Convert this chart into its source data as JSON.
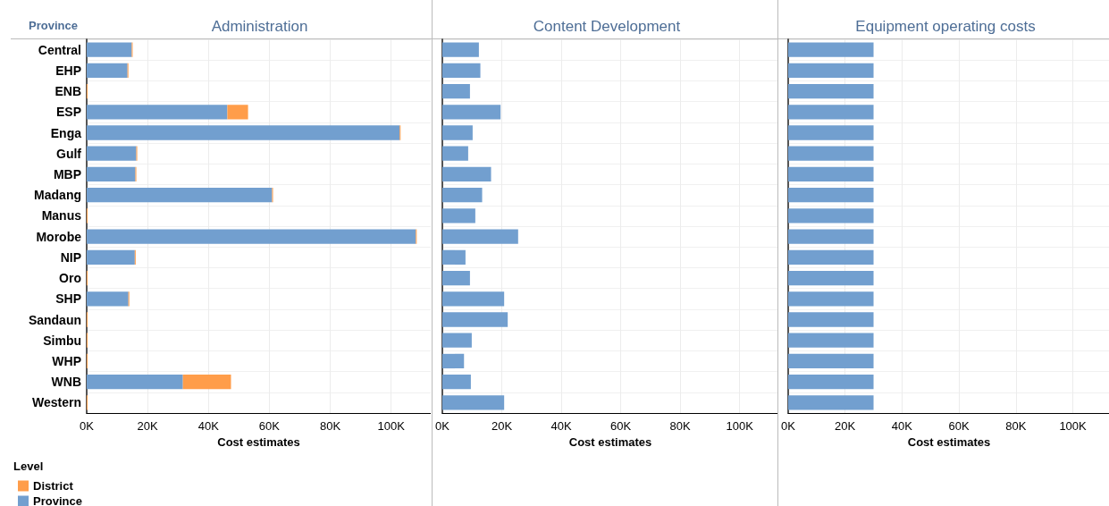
{
  "chart_data": [
    {
      "type": "bar",
      "orientation": "horizontal",
      "stacked": true,
      "title": "Administration",
      "xlabel": "Cost estimates",
      "ylabel": "Province",
      "legend_title": "Level",
      "legend": "bottom left",
      "grid": true,
      "categories": [
        "Central",
        "EHP",
        "ENB",
        "ESP",
        "Enga",
        "Gulf",
        "MBP",
        "Madang",
        "Manus",
        "Morobe",
        "NIP",
        "Oro",
        "SHP",
        "Sandaun",
        "Simbu",
        "WHP",
        "WNB",
        "Western"
      ],
      "xlim": [
        0,
        113000
      ],
      "xticks": [
        {
          "value": 0,
          "label": "0K"
        },
        {
          "value": 20000,
          "label": "20K"
        },
        {
          "value": 40000,
          "label": "40K"
        },
        {
          "value": 60000,
          "label": "60K"
        },
        {
          "value": 80000,
          "label": "80K"
        },
        {
          "value": 100000,
          "label": "100K"
        }
      ],
      "series": [
        {
          "name": "Province",
          "color": "#729fcf",
          "values": [
            14800,
            13400,
            0,
            46200,
            102800,
            16300,
            16000,
            60900,
            0,
            108100,
            15800,
            0,
            13700,
            0,
            0,
            0,
            31600,
            0
          ]
        },
        {
          "name": "District",
          "color": "#ff9d4a",
          "values": [
            300,
            300,
            300,
            6800,
            300,
            300,
            300,
            300,
            300,
            300,
            300,
            300,
            300,
            300,
            300,
            300,
            15800,
            300
          ]
        }
      ]
    },
    {
      "type": "bar",
      "orientation": "horizontal",
      "stacked": true,
      "title": "Content Development",
      "xlabel": "Cost estimates",
      "grid": true,
      "legend": false,
      "tick_labels": "x",
      "xlim": [
        0,
        113000
      ],
      "xticks": [
        {
          "value": 0,
          "label": "0K"
        },
        {
          "value": 20000,
          "label": "20K"
        },
        {
          "value": 40000,
          "label": "40K"
        },
        {
          "value": 60000,
          "label": "60K"
        },
        {
          "value": 80000,
          "label": "80K"
        },
        {
          "value": 100000,
          "label": "100K"
        }
      ],
      "series": [
        {
          "color": "#729fcf",
          "values": [
            12300,
            12800,
            9300,
            19600,
            10200,
            8700,
            16400,
            13400,
            11100,
            25500,
            7800,
            9300,
            20800,
            22000,
            9900,
            7300,
            9600,
            20800
          ]
        }
      ]
    },
    {
      "type": "bar",
      "orientation": "horizontal",
      "stacked": true,
      "title": "Equipment operating costs",
      "xlabel": "Cost estimates",
      "grid": true,
      "legend": false,
      "tick_labels": "x",
      "xlim": [
        0,
        113000
      ],
      "xticks": [
        {
          "value": 0,
          "label": "0K"
        },
        {
          "value": 20000,
          "label": "20K"
        },
        {
          "value": 40000,
          "label": "40K"
        },
        {
          "value": 60000,
          "label": "60K"
        },
        {
          "value": 80000,
          "label": "80K"
        },
        {
          "value": 100000,
          "label": "100K"
        }
      ],
      "series": [
        {
          "color": "#729fcf",
          "values": [
            30000,
            30000,
            30000,
            30000,
            30000,
            30000,
            30000,
            30000,
            30000,
            30000,
            30000,
            30000,
            30000,
            30000,
            30000,
            30000,
            30000,
            30000
          ]
        }
      ]
    }
  ]
}
